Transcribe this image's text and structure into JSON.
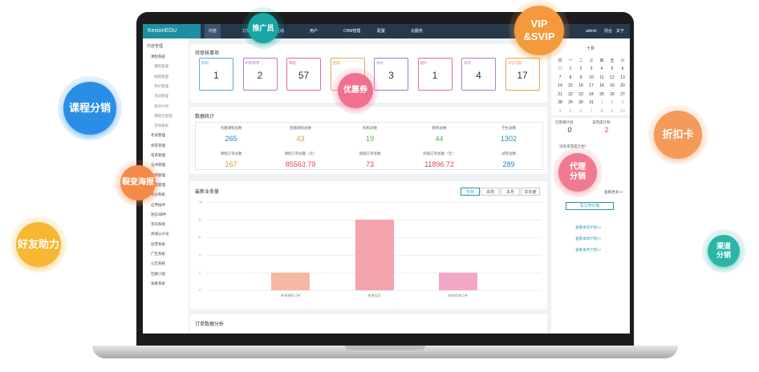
{
  "nav": {
    "logo": "KesionEDU",
    "items": [
      "内容",
      "订单",
      "互动",
      "用户",
      "CRM管理",
      "配置",
      "云服务"
    ],
    "user": "admin",
    "links": [
      "前台",
      "关于"
    ]
  },
  "sidebar": {
    "title": "内容管理",
    "items": [
      "课程系统",
      "课程管理",
      "视频管理",
      "专栏管理",
      "活动管理",
      "培训计划",
      "课程包管理",
      "活动报表",
      "考试管理",
      "师友管理",
      "电商管理",
      "证书管理",
      "分销管理",
      "代理管理",
      "积分系统",
      "应用插件",
      "短信/邮件",
      "资讯系统",
      "商城公众号",
      "投票系统",
      "广告系统",
      "公告系统",
      "社群小组",
      "采集系统"
    ]
  },
  "pending": {
    "title": "待审核事项",
    "cards": [
      {
        "label": "机构",
        "value": 1,
        "color": "#5aa9e6"
      },
      {
        "label": "机构讲师",
        "value": 2,
        "color": "#b07ad6"
      },
      {
        "label": "课程",
        "value": 57,
        "color": "#e46aa0"
      },
      {
        "label": "直播",
        "color": "#f0a050"
      },
      {
        "label": "评价",
        "value": 3,
        "color": "#9a7ad6"
      },
      {
        "label": "图片",
        "value": 1,
        "color": "#e46aa0"
      },
      {
        "label": "资料",
        "value": 4,
        "color": "#b07ad6"
      },
      {
        "label": "问答问题",
        "value": 17,
        "color": "#f0a050"
      }
    ]
  },
  "stats": {
    "title": "数据统计",
    "items": [
      {
        "label": "点播课程总数",
        "value": "265",
        "color": "#2a7dc0"
      },
      {
        "label": "直播课程总数",
        "value": "43",
        "color": "#e8913a"
      },
      {
        "label": "机构总数",
        "value": "19",
        "color": "#55b04a"
      },
      {
        "label": "教师总数",
        "value": "44",
        "color": "#55b04a"
      },
      {
        "label": "学生总数",
        "value": "1302",
        "color": "#2a8fb0"
      },
      {
        "label": "课程订单总数",
        "value": "167",
        "color": "#e8913a"
      },
      {
        "label": "课程订单总额（元）",
        "value": "85563.79",
        "color": "#e04848"
      },
      {
        "label": "商城订单总数",
        "value": "73",
        "color": "#e04848"
      },
      {
        "label": "商城订单总额（元）",
        "value": "11896.72",
        "color": "#e04848"
      },
      {
        "label": "试卷总数",
        "value": "289",
        "color": "#2a7dc0"
      }
    ]
  },
  "business": {
    "title": "最新业务量",
    "tabs": [
      "今日",
      "本周",
      "本月",
      "本年度"
    ],
    "ylim": [
      0,
      10
    ],
    "yticks": [
      0,
      2,
      4,
      6,
      8,
      10
    ],
    "categories": [
      "新增课程订单",
      "新增会员",
      "新增商城订单"
    ],
    "values": [
      2,
      8,
      2
    ],
    "colors": [
      "#f4b9a0",
      "#f4a2ac",
      "#f4a8c8"
    ]
  },
  "orders": {
    "title": "订单数据分析"
  },
  "calendar": {
    "month": "十月",
    "weekdays": [
      "日",
      "一",
      "二",
      "三",
      "四",
      "五",
      "六"
    ],
    "rows": [
      [
        "30",
        "1",
        "2",
        "3",
        "4",
        "5",
        "6"
      ],
      [
        "7",
        "8",
        "9",
        "10",
        "11",
        "12",
        "13"
      ],
      [
        "14",
        "15",
        "16",
        "17",
        "18",
        "19",
        "20"
      ],
      [
        "21",
        "22",
        "23",
        "24",
        "25",
        "26",
        "27"
      ],
      [
        "28",
        "29",
        "30",
        "31",
        "1",
        "2",
        "3"
      ],
      [
        "4",
        "5",
        "6",
        "7",
        "8",
        "9",
        "10"
      ]
    ]
  },
  "plans": {
    "items": [
      {
        "label": "已购课计划",
        "value": "0"
      },
      {
        "label": "未完成计划",
        "value": "2"
      }
    ],
    "empty": "没有未完成计划！",
    "more": "查看更多>>",
    "write": "写工作计划",
    "links": [
      "查看本日计划>>",
      "查看本周计划>>",
      "查看本月计划>>"
    ]
  },
  "bubbles": [
    "推广员",
    "VIP\n&SVIP",
    "课程分销",
    "折扣卡",
    "裂变海报",
    "优惠券",
    "代理\n分销",
    "好友助力",
    "渠道\n分销"
  ]
}
